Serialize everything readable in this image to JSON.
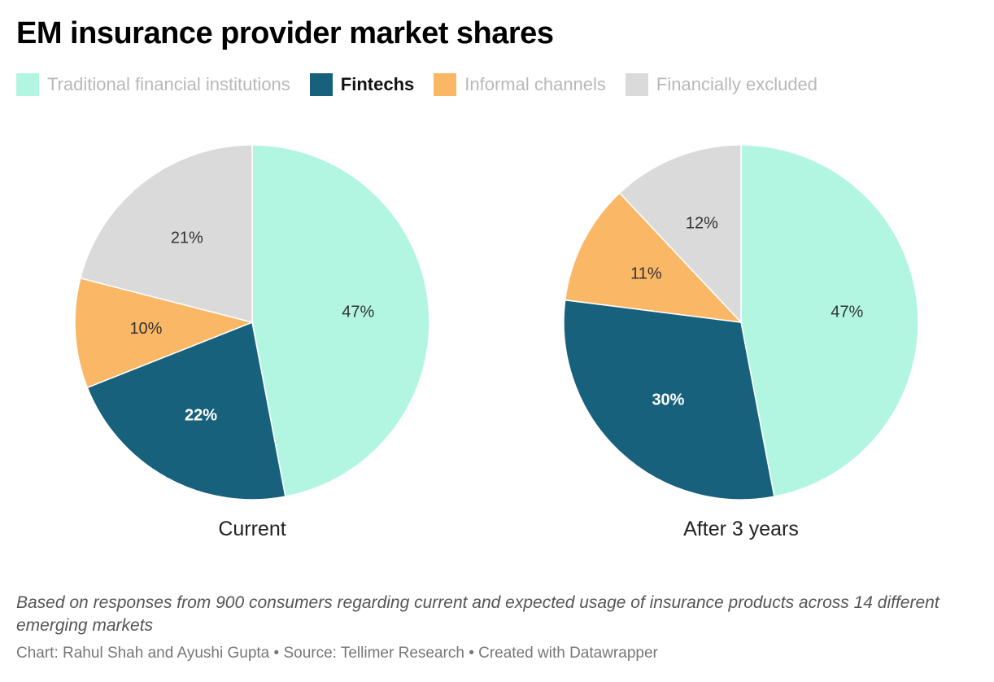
{
  "title": "EM insurance provider market shares",
  "legend": [
    {
      "label": "Traditional financial institutions",
      "color": "#b2f6e1",
      "active": false
    },
    {
      "label": "Fintechs",
      "color": "#17617c",
      "active": true
    },
    {
      "label": "Informal channels",
      "color": "#fab766",
      "active": false
    },
    {
      "label": "Financially excluded",
      "color": "#dadada",
      "active": false
    }
  ],
  "chart_data": [
    {
      "type": "pie",
      "caption": "Current",
      "slices": [
        {
          "name": "Traditional financial institutions",
          "value": 47,
          "label": "47%",
          "color": "#b2f6e1"
        },
        {
          "name": "Fintechs",
          "value": 22,
          "label": "22%",
          "color": "#17617c"
        },
        {
          "name": "Informal channels",
          "value": 10,
          "label": "10%",
          "color": "#fab766"
        },
        {
          "name": "Financially excluded",
          "value": 21,
          "label": "21%",
          "color": "#dadada"
        }
      ]
    },
    {
      "type": "pie",
      "caption": "After 3 years",
      "slices": [
        {
          "name": "Traditional financial institutions",
          "value": 47,
          "label": "47%",
          "color": "#b2f6e1"
        },
        {
          "name": "Fintechs",
          "value": 30,
          "label": "30%",
          "color": "#17617c"
        },
        {
          "name": "Informal channels",
          "value": 11,
          "label": "11%",
          "color": "#fab766"
        },
        {
          "name": "Financially excluded",
          "value": 12,
          "label": "12%",
          "color": "#dadada"
        }
      ]
    }
  ],
  "notes": "Based on responses from 900 consumers regarding current and expected usage of insurance products across 14 different emerging markets",
  "credit": "Chart: Rahul Shah and Ayushi Gupta • Source: Tellimer Research • Created with Datawrapper"
}
